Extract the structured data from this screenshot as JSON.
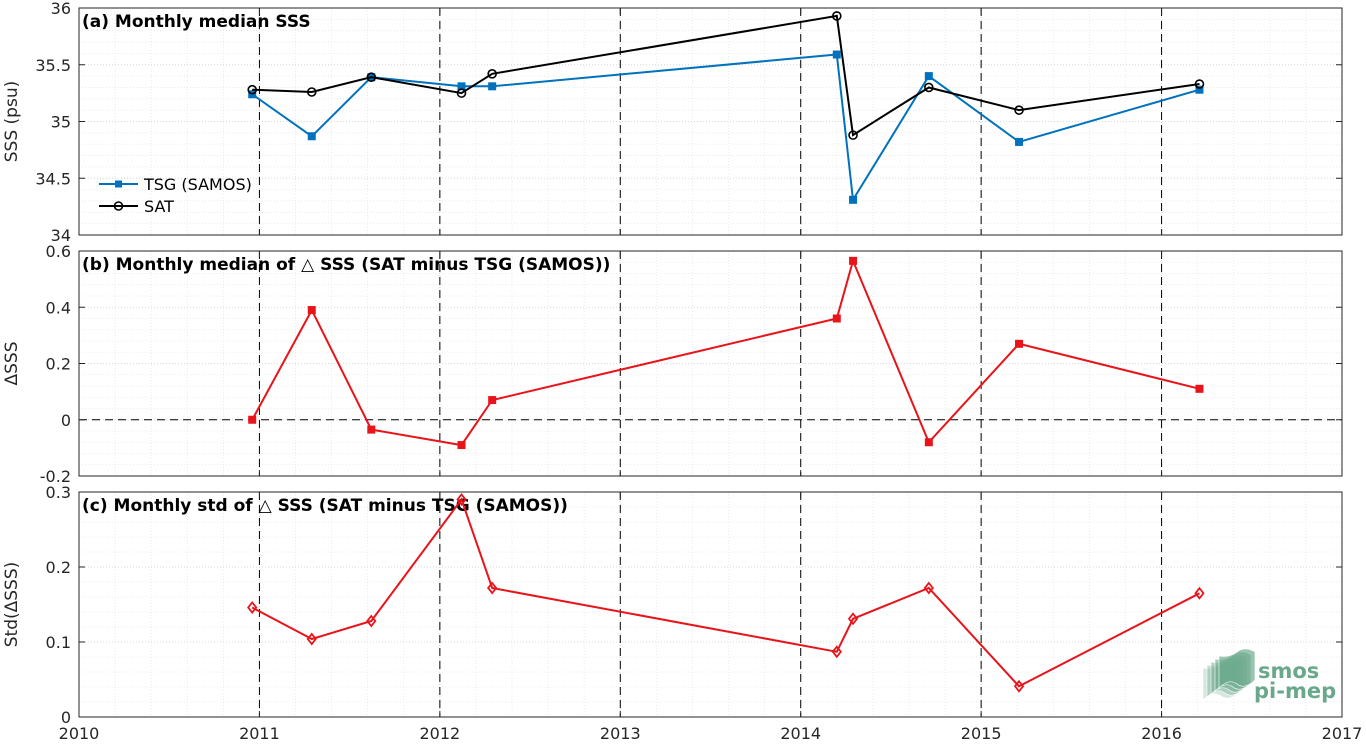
{
  "colors": {
    "tsg": "#0072BD",
    "sat": "#000000",
    "delta": "#E8141A",
    "logo": "#6aa88b"
  },
  "logo": {
    "line1": "smos",
    "line2": "pi-mep",
    "icon": "wave-stack-logo"
  },
  "chart_data": [
    {
      "type": "line",
      "title": "(a) Monthly median SSS",
      "ylabel": "SSS (psu)",
      "xlim": [
        2010,
        2017
      ],
      "ylim": [
        34,
        36
      ],
      "yticks": [
        "34",
        "34.5",
        "35",
        "35.5",
        "36"
      ],
      "xticks": [
        "2010",
        "2011",
        "2012",
        "2013",
        "2014",
        "2015",
        "2016",
        "2017"
      ],
      "grid": "on",
      "legend_position": "bottom-left",
      "series": [
        {
          "name": "TSG (SAMOS)",
          "color": "#0072BD",
          "marker": "square",
          "x": [
            2010.96,
            2011.29,
            2011.62,
            2012.12,
            2012.29,
            2014.2,
            2014.29,
            2014.71,
            2015.21,
            2016.21
          ],
          "y": [
            35.24,
            34.87,
            35.39,
            35.31,
            35.31,
            35.59,
            34.31,
            35.4,
            34.82,
            35.28
          ]
        },
        {
          "name": "SAT",
          "color": "#000000",
          "marker": "circle",
          "x": [
            2010.96,
            2011.29,
            2011.62,
            2012.12,
            2012.29,
            2014.2,
            2014.29,
            2014.71,
            2015.21,
            2016.21
          ],
          "y": [
            35.28,
            35.26,
            35.39,
            35.25,
            35.42,
            35.93,
            34.88,
            35.3,
            35.1,
            35.33
          ]
        }
      ]
    },
    {
      "type": "line",
      "title": "(b) Monthly median of △ SSS (SAT minus TSG (SAMOS))",
      "ylabel": "ΔSSS",
      "xlim": [
        2010,
        2017
      ],
      "ylim": [
        -0.2,
        0.6
      ],
      "yticks": [
        "-0.2",
        "0",
        "0.2",
        "0.4",
        "0.6"
      ],
      "grid": "on",
      "zero_line": true,
      "series": [
        {
          "color": "#E8141A",
          "marker": "square",
          "x": [
            2010.96,
            2011.29,
            2011.62,
            2012.12,
            2012.29,
            2014.2,
            2014.29,
            2014.71,
            2015.21,
            2016.21
          ],
          "y": [
            0.0,
            0.39,
            -0.035,
            -0.09,
            0.07,
            0.36,
            0.565,
            -0.08,
            0.27,
            0.11
          ]
        }
      ]
    },
    {
      "type": "line",
      "title": "(c) Monthly std of △ SSS (SAT minus TSG (SAMOS))",
      "ylabel": "Std(ΔSSS)",
      "xlim": [
        2010,
        2017
      ],
      "ylim": [
        0,
        0.3
      ],
      "yticks": [
        "0",
        "0.1",
        "0.2",
        "0.3"
      ],
      "xticks": [
        "2010",
        "2011",
        "2012",
        "2013",
        "2014",
        "2015",
        "2016",
        "2017"
      ],
      "grid": "on",
      "series": [
        {
          "color": "#E8141A",
          "marker": "diamond",
          "x": [
            2010.96,
            2011.29,
            2011.62,
            2012.12,
            2012.29,
            2014.2,
            2014.29,
            2014.71,
            2015.21,
            2016.21
          ],
          "y": [
            0.146,
            0.104,
            0.128,
            0.29,
            0.172,
            0.087,
            0.131,
            0.172,
            0.041,
            0.165
          ]
        }
      ]
    }
  ]
}
